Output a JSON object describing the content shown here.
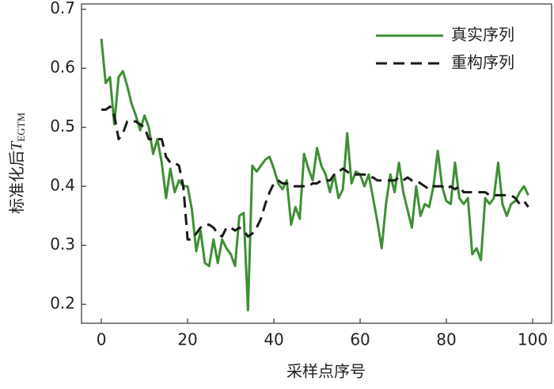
{
  "chart_data": {
    "type": "line",
    "x_label": "采样点序号",
    "y_label": "标准化后",
    "y_label_symbol": "T",
    "y_label_subscript": "EGTM",
    "x": [
      0,
      1,
      2,
      3,
      4,
      5,
      6,
      7,
      8,
      9,
      10,
      11,
      12,
      13,
      14,
      15,
      16,
      17,
      18,
      19,
      20,
      21,
      22,
      23,
      24,
      25,
      26,
      27,
      28,
      29,
      30,
      31,
      32,
      33,
      34,
      35,
      36,
      37,
      38,
      39,
      40,
      41,
      42,
      43,
      44,
      45,
      46,
      47,
      48,
      49,
      50,
      51,
      52,
      53,
      54,
      55,
      56,
      57,
      58,
      59,
      60,
      61,
      62,
      63,
      64,
      65,
      66,
      67,
      68,
      69,
      70,
      71,
      72,
      73,
      74,
      75,
      76,
      77,
      78,
      79,
      80,
      81,
      82,
      83,
      84,
      85,
      86,
      87,
      88,
      89,
      90,
      91,
      92,
      93,
      94,
      95,
      96,
      97,
      98,
      99
    ],
    "series": [
      {
        "name": "真实序列",
        "color": "#3f8f35",
        "dash": false,
        "values": [
          0.65,
          0.575,
          0.585,
          0.505,
          0.585,
          0.595,
          0.57,
          0.54,
          0.52,
          0.495,
          0.52,
          0.5,
          0.455,
          0.48,
          0.44,
          0.38,
          0.43,
          0.39,
          0.41,
          0.4,
          0.4,
          0.36,
          0.29,
          0.325,
          0.27,
          0.265,
          0.31,
          0.27,
          0.31,
          0.295,
          0.285,
          0.265,
          0.35,
          0.355,
          0.19,
          0.435,
          0.425,
          0.435,
          0.445,
          0.45,
          0.43,
          0.405,
          0.395,
          0.41,
          0.335,
          0.365,
          0.345,
          0.455,
          0.43,
          0.41,
          0.465,
          0.435,
          0.42,
          0.39,
          0.42,
          0.38,
          0.395,
          0.49,
          0.405,
          0.425,
          0.42,
          0.4,
          0.42,
          0.38,
          0.34,
          0.295,
          0.37,
          0.42,
          0.39,
          0.44,
          0.39,
          0.36,
          0.33,
          0.4,
          0.35,
          0.37,
          0.365,
          0.4,
          0.46,
          0.4,
          0.375,
          0.37,
          0.44,
          0.38,
          0.37,
          0.38,
          0.285,
          0.295,
          0.275,
          0.38,
          0.37,
          0.38,
          0.44,
          0.37,
          0.35,
          0.37,
          0.375,
          0.39,
          0.4,
          0.385
        ]
      },
      {
        "name": "重构序列",
        "color": "#1a1a1a",
        "dash": true,
        "values": [
          0.53,
          0.53,
          0.535,
          0.52,
          0.48,
          0.49,
          0.51,
          0.51,
          0.51,
          0.505,
          0.5,
          0.48,
          0.48,
          0.48,
          0.48,
          0.45,
          0.44,
          0.44,
          0.435,
          0.4,
          0.31,
          0.31,
          0.32,
          0.33,
          0.335,
          0.335,
          0.33,
          0.32,
          0.315,
          0.33,
          0.33,
          0.325,
          0.33,
          0.325,
          0.315,
          0.32,
          0.33,
          0.345,
          0.37,
          0.39,
          0.405,
          0.41,
          0.405,
          0.405,
          0.4,
          0.4,
          0.4,
          0.4,
          0.4,
          0.405,
          0.405,
          0.41,
          0.41,
          0.41,
          0.42,
          0.425,
          0.43,
          0.425,
          0.42,
          0.42,
          0.42,
          0.42,
          0.415,
          0.415,
          0.41,
          0.41,
          0.41,
          0.41,
          0.41,
          0.415,
          0.41,
          0.415,
          0.41,
          0.41,
          0.405,
          0.4,
          0.395,
          0.4,
          0.4,
          0.4,
          0.395,
          0.4,
          0.395,
          0.4,
          0.39,
          0.39,
          0.39,
          0.39,
          0.39,
          0.39,
          0.385,
          0.385,
          0.385,
          0.385,
          0.385,
          0.385,
          0.38,
          0.37,
          0.375,
          0.365
        ]
      }
    ],
    "xlim": [
      -4.6,
      104.4
    ],
    "xticks": [
      0,
      20,
      40,
      60,
      80,
      100
    ],
    "ylim": [
      0.168,
      0.709
    ],
    "yticks": [
      0.2,
      0.3,
      0.4,
      0.5,
      0.6,
      0.7
    ],
    "legend": "upper right"
  }
}
